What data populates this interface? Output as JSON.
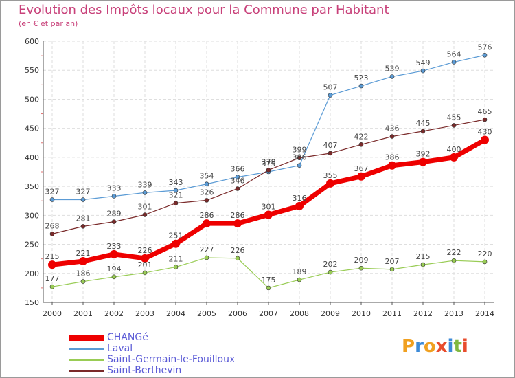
{
  "title": "Evolution des Impôts locaux pour la Commune par Habitant",
  "subtitle": "(en € et par an)",
  "logo_letters": [
    "P",
    "r",
    "o",
    "x",
    "i",
    "t",
    "i"
  ],
  "logo_colors": [
    "#f0a020",
    "#3c8ad8",
    "#f0a020",
    "#e84c2c",
    "#3c8ad8",
    "#80b840",
    "#e84c2c"
  ],
  "chart_data": {
    "type": "line",
    "title": "Evolution des Impôts locaux pour la Commune par Habitant",
    "subtitle": "(en € et par an)",
    "x": [
      2000,
      2001,
      2002,
      2003,
      2004,
      2005,
      2006,
      2007,
      2008,
      2009,
      2010,
      2011,
      2012,
      2013,
      2014
    ],
    "ylim": [
      150,
      600
    ],
    "yticks": [
      150,
      200,
      250,
      300,
      350,
      400,
      450,
      500,
      550,
      600
    ],
    "grid": true,
    "legend_position": "bottom-left",
    "series": [
      {
        "name": "CHANGé",
        "color": "#ee0000",
        "values": [
          215,
          221,
          233,
          226,
          251,
          286,
          286,
          301,
          316,
          355,
          367,
          386,
          392,
          400,
          430
        ]
      },
      {
        "name": "Laval",
        "color": "#5b9bd5",
        "values": [
          327,
          327,
          333,
          339,
          343,
          354,
          366,
          375,
          386,
          507,
          523,
          539,
          549,
          564,
          576
        ]
      },
      {
        "name": "Saint-Germain-le-Fouilloux",
        "color": "#99cc55",
        "values": [
          177,
          186,
          194,
          201,
          211,
          227,
          226,
          175,
          189,
          202,
          209,
          207,
          215,
          222,
          220
        ]
      },
      {
        "name": "Saint-Berthevin",
        "color": "#7a2a2a",
        "values": [
          268,
          281,
          289,
          301,
          321,
          326,
          346,
          378,
          399,
          407,
          422,
          436,
          445,
          455,
          465
        ]
      }
    ]
  }
}
